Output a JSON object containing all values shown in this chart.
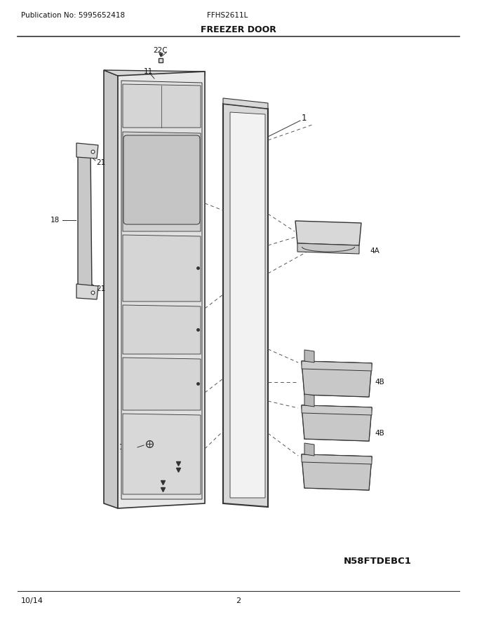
{
  "title": "FREEZER DOOR",
  "pub_no": "Publication No: 5995652418",
  "model": "FFHS2611L",
  "date": "10/14",
  "page": "2",
  "diagram_id": "N58FTDEBC1",
  "bg_color": "#ffffff",
  "line_color": "#333333",
  "gray1": "#c8c8c8",
  "gray2": "#d8d8d8",
  "gray3": "#e8e8e8",
  "gray4": "#b8b8b8"
}
